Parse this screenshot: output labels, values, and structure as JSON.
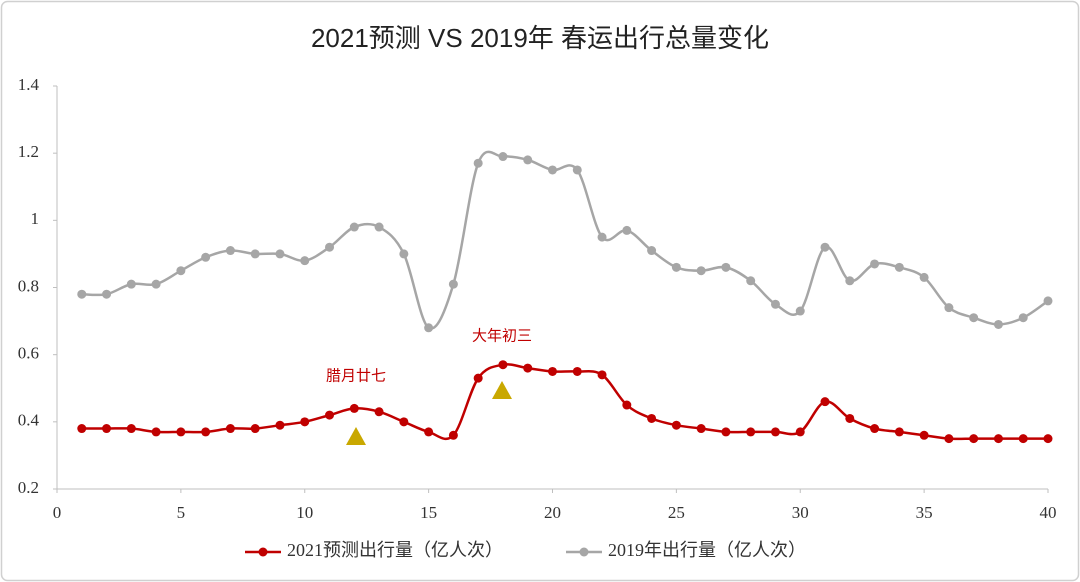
{
  "chart_data": {
    "type": "line",
    "title": "2021预测 VS 2019年 春运出行总量变化",
    "x": [
      1,
      2,
      3,
      4,
      5,
      6,
      7,
      8,
      9,
      10,
      11,
      12,
      13,
      14,
      15,
      16,
      17,
      18,
      19,
      20,
      21,
      22,
      23,
      24,
      25,
      26,
      27,
      28,
      29,
      30,
      31,
      32,
      33,
      34,
      35,
      36,
      37,
      38,
      39,
      40
    ],
    "series": [
      {
        "name": "2021预测出行量（亿人次）",
        "color": "#c00000",
        "values": [
          0.38,
          0.38,
          0.38,
          0.37,
          0.37,
          0.37,
          0.38,
          0.38,
          0.39,
          0.4,
          0.42,
          0.44,
          0.43,
          0.4,
          0.37,
          0.36,
          0.53,
          0.57,
          0.56,
          0.55,
          0.55,
          0.54,
          0.45,
          0.41,
          0.39,
          0.38,
          0.37,
          0.37,
          0.37,
          0.37,
          0.46,
          0.41,
          0.38,
          0.37,
          0.36,
          0.35,
          0.35,
          0.35,
          0.35,
          0.35
        ]
      },
      {
        "name": "2019年出行量（亿人次）",
        "color": "#a6a6a6",
        "values": [
          0.78,
          0.78,
          0.81,
          0.81,
          0.85,
          0.89,
          0.91,
          0.9,
          0.9,
          0.88,
          0.92,
          0.98,
          0.98,
          0.9,
          0.68,
          0.81,
          1.17,
          1.19,
          1.18,
          1.15,
          1.15,
          0.95,
          0.97,
          0.91,
          0.86,
          0.85,
          0.86,
          0.82,
          0.75,
          0.73,
          0.92,
          0.82,
          0.87,
          0.86,
          0.83,
          0.74,
          0.71,
          0.69,
          0.71,
          0.76
        ]
      }
    ],
    "annotations": [
      "腊月廿七",
      "大年初三"
    ],
    "xlim": [
      0,
      40
    ],
    "xticks": [
      0,
      5,
      10,
      15,
      20,
      25,
      30,
      35,
      40
    ],
    "ylim": [
      0.2,
      1.4
    ],
    "yticks": [
      0.2,
      0.4,
      0.6,
      0.8,
      1,
      1.2,
      1.4
    ],
    "grid": false,
    "legend": "bottom",
    "smooth": true
  }
}
